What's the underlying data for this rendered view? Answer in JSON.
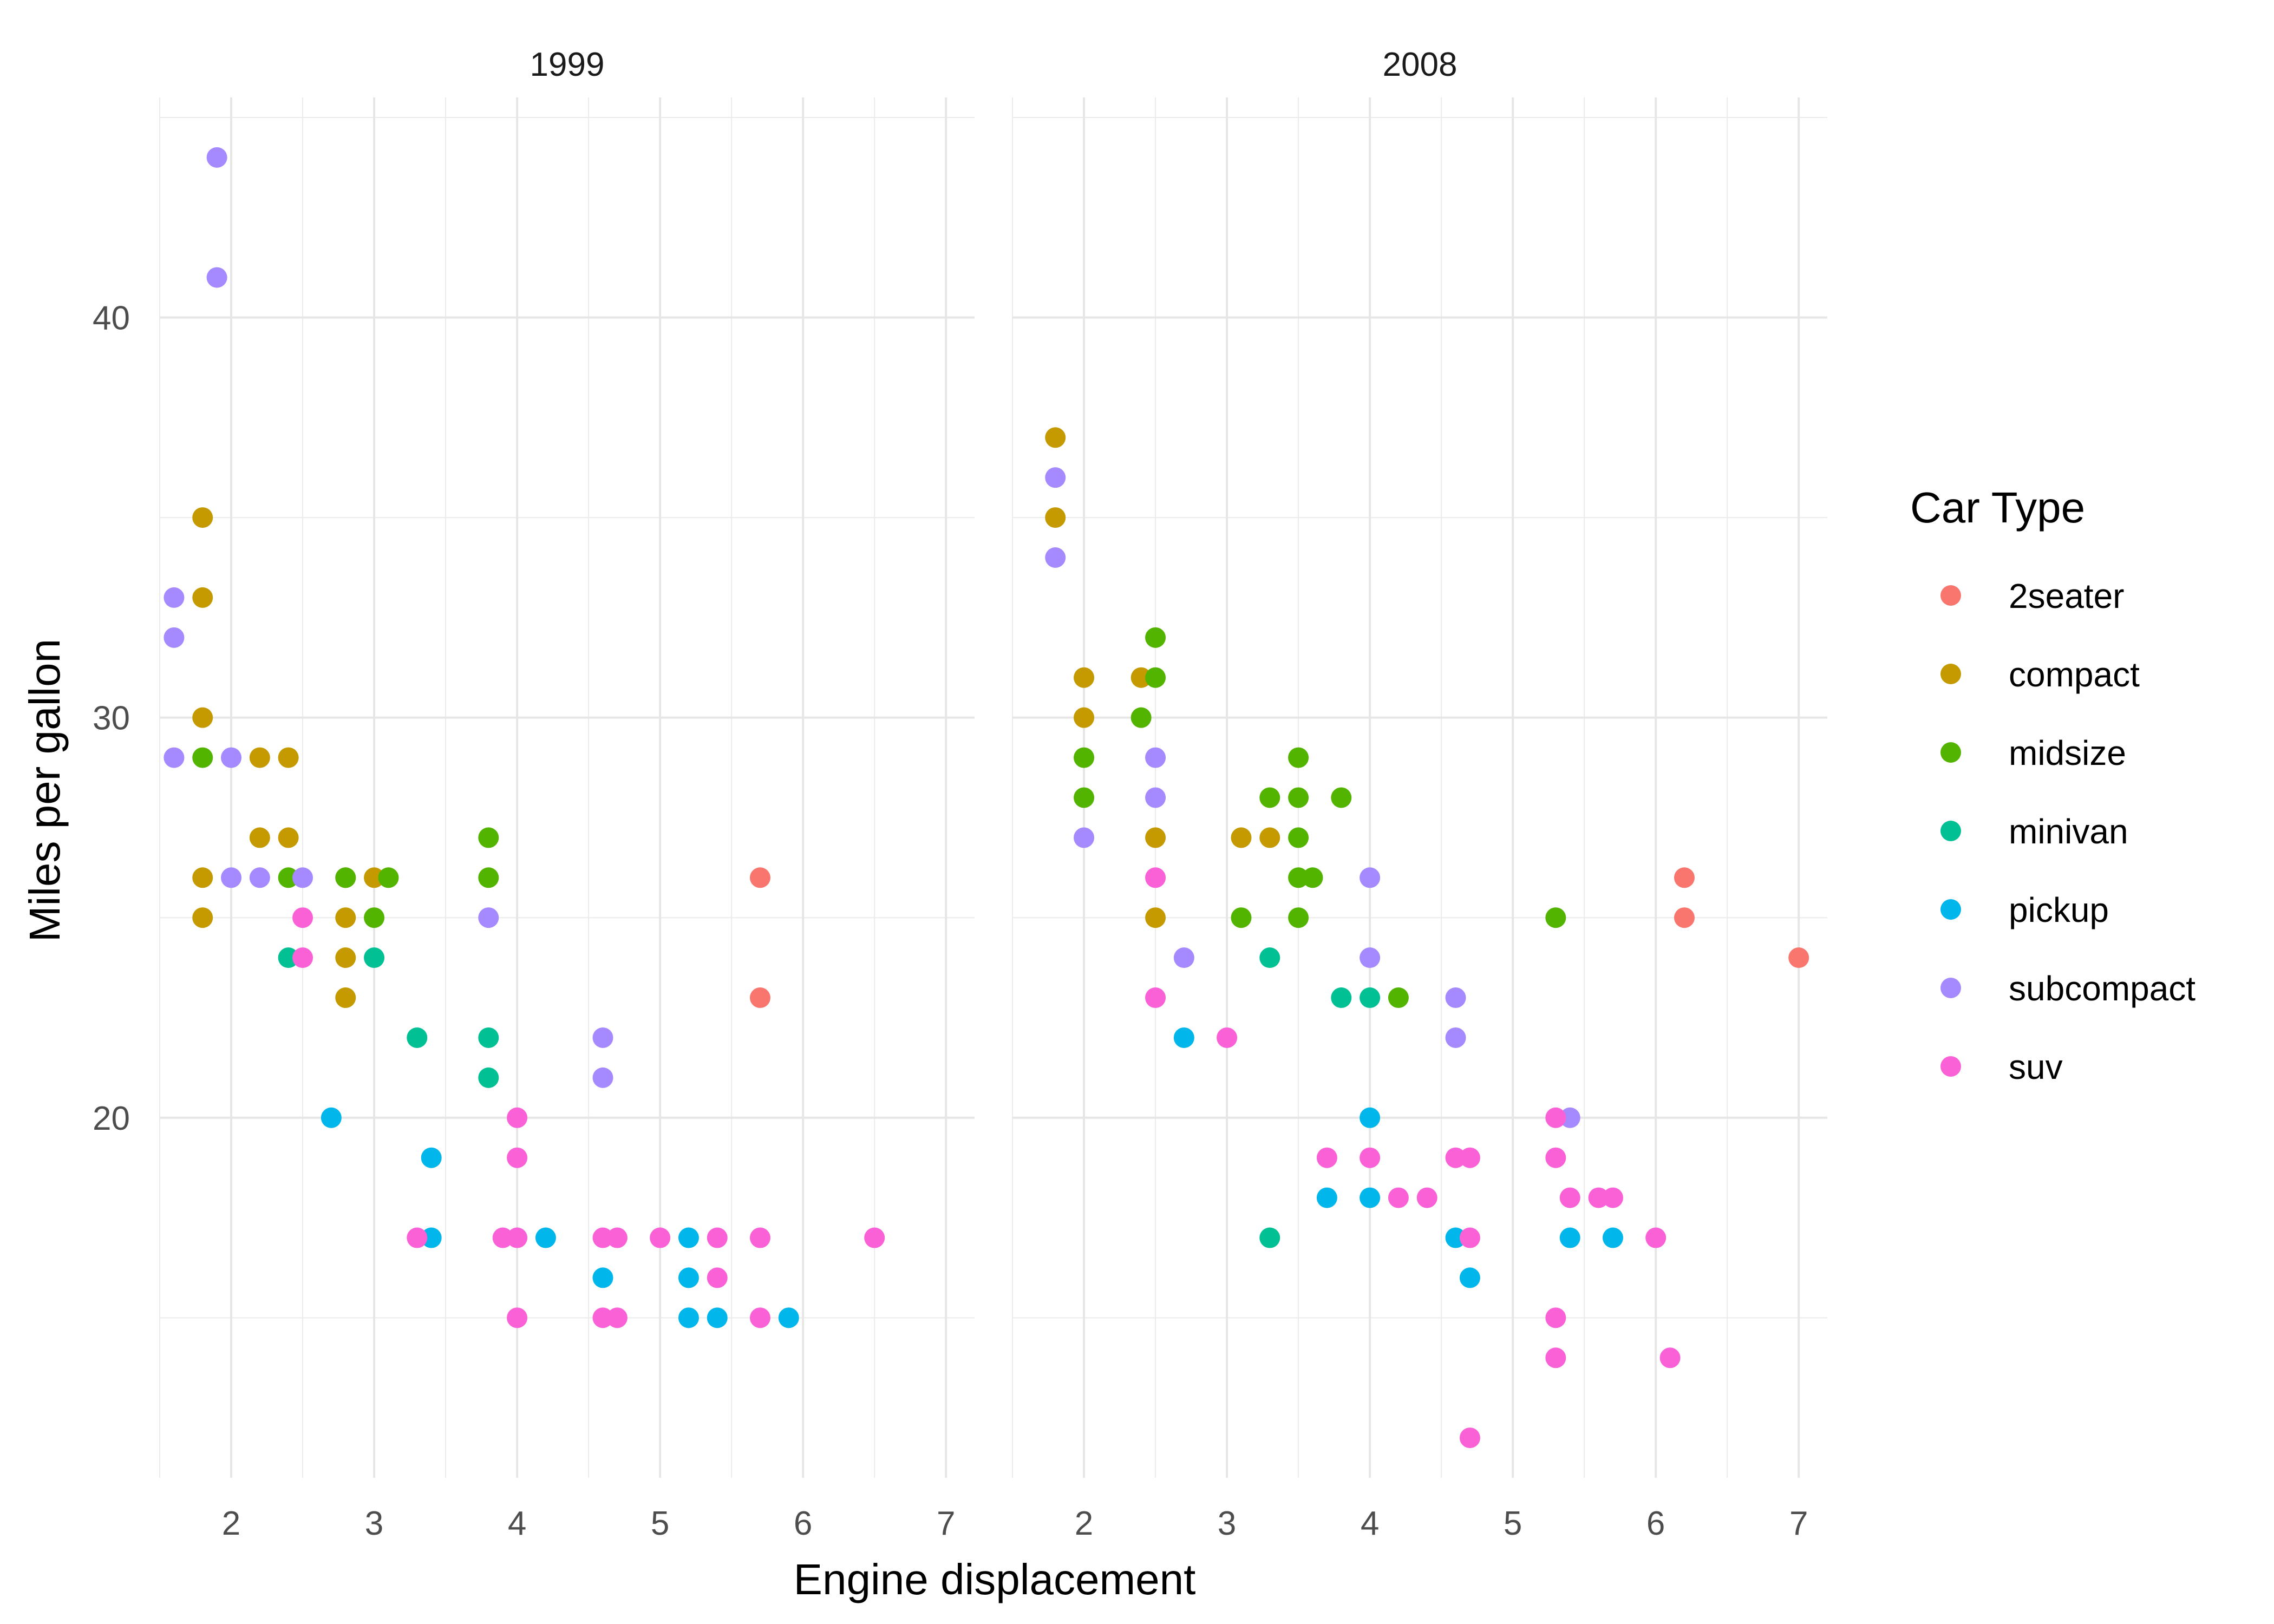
{
  "chart_data": {
    "type": "scatter",
    "xlabel": "Engine displacement",
    "ylabel": "Miles per gallon",
    "xlim": [
      1.5,
      7.2
    ],
    "ylim": [
      11,
      45.5
    ],
    "x_ticks": [
      2,
      3,
      4,
      5,
      6,
      7
    ],
    "y_ticks": [
      20,
      30,
      40
    ],
    "grid": true,
    "legend": {
      "title": "Car Type",
      "position": "right",
      "entries": [
        "2seater",
        "compact",
        "midsize",
        "minivan",
        "pickup",
        "subcompact",
        "suv"
      ]
    },
    "colors": {
      "2seater": "#F8766D",
      "compact": "#C49A00",
      "midsize": "#53B400",
      "minivan": "#00C094",
      "pickup": "#00B6EB",
      "subcompact": "#A58AFF",
      "suv": "#FB61D7"
    },
    "panels": [
      {
        "label": "1999",
        "series": [
          {
            "name": "2seater",
            "points": [
              [
                5.7,
                26
              ],
              [
                5.7,
                23
              ]
            ]
          },
          {
            "name": "compact",
            "points": [
              [
                1.8,
                35
              ],
              [
                1.8,
                33
              ],
              [
                1.8,
                30
              ],
              [
                1.8,
                26
              ],
              [
                1.8,
                25
              ],
              [
                2.2,
                29
              ],
              [
                2.2,
                27
              ],
              [
                2.4,
                29
              ],
              [
                2.4,
                27
              ],
              [
                2.8,
                26
              ],
              [
                2.8,
                25
              ],
              [
                2.8,
                24
              ],
              [
                2.8,
                23
              ],
              [
                3.0,
                26
              ]
            ]
          },
          {
            "name": "midsize",
            "points": [
              [
                1.8,
                29
              ],
              [
                2.4,
                26
              ],
              [
                2.8,
                26
              ],
              [
                3.0,
                25
              ],
              [
                3.1,
                26
              ],
              [
                3.8,
                27
              ],
              [
                3.8,
                26
              ]
            ]
          },
          {
            "name": "minivan",
            "points": [
              [
                2.4,
                24
              ],
              [
                3.0,
                24
              ],
              [
                3.3,
                22
              ],
              [
                3.8,
                22
              ],
              [
                3.8,
                21
              ]
            ]
          },
          {
            "name": "pickup",
            "points": [
              [
                2.7,
                20
              ],
              [
                3.4,
                19
              ],
              [
                3.4,
                17
              ],
              [
                4.2,
                17
              ],
              [
                4.6,
                16
              ],
              [
                5.2,
                17
              ],
              [
                5.2,
                16
              ],
              [
                5.2,
                15
              ],
              [
                5.4,
                15
              ],
              [
                5.9,
                15
              ]
            ]
          },
          {
            "name": "subcompact",
            "points": [
              [
                1.6,
                33
              ],
              [
                1.6,
                32
              ],
              [
                1.6,
                29
              ],
              [
                1.9,
                44
              ],
              [
                1.9,
                41
              ],
              [
                2.0,
                29
              ],
              [
                2.0,
                26
              ],
              [
                2.2,
                26
              ],
              [
                2.5,
                26
              ],
              [
                3.8,
                25
              ],
              [
                4.6,
                22
              ],
              [
                4.6,
                21
              ]
            ]
          },
          {
            "name": "suv",
            "points": [
              [
                2.5,
                25
              ],
              [
                2.5,
                24
              ],
              [
                3.3,
                17
              ],
              [
                3.9,
                17
              ],
              [
                4.0,
                20
              ],
              [
                4.0,
                19
              ],
              [
                4.0,
                17
              ],
              [
                4.0,
                15
              ],
              [
                4.6,
                17
              ],
              [
                4.6,
                15
              ],
              [
                4.7,
                17
              ],
              [
                4.7,
                15
              ],
              [
                5.0,
                17
              ],
              [
                5.4,
                17
              ],
              [
                5.4,
                16
              ],
              [
                5.7,
                17
              ],
              [
                5.7,
                15
              ],
              [
                6.5,
                17
              ]
            ]
          }
        ]
      },
      {
        "label": "2008",
        "series": [
          {
            "name": "2seater",
            "points": [
              [
                6.2,
                26
              ],
              [
                6.2,
                25
              ],
              [
                7.0,
                24
              ]
            ]
          },
          {
            "name": "compact",
            "points": [
              [
                1.8,
                37
              ],
              [
                1.8,
                35
              ],
              [
                2.0,
                31
              ],
              [
                2.0,
                30
              ],
              [
                2.4,
                31
              ],
              [
                2.5,
                27
              ],
              [
                2.5,
                25
              ],
              [
                3.1,
                27
              ],
              [
                3.3,
                27
              ]
            ]
          },
          {
            "name": "midsize",
            "points": [
              [
                2.0,
                29
              ],
              [
                2.0,
                28
              ],
              [
                2.4,
                30
              ],
              [
                2.5,
                32
              ],
              [
                2.5,
                31
              ],
              [
                3.1,
                25
              ],
              [
                3.3,
                28
              ],
              [
                3.5,
                29
              ],
              [
                3.5,
                28
              ],
              [
                3.5,
                27
              ],
              [
                3.5,
                26
              ],
              [
                3.5,
                25
              ],
              [
                3.6,
                26
              ],
              [
                3.8,
                28
              ],
              [
                4.2,
                23
              ],
              [
                5.3,
                25
              ]
            ]
          },
          {
            "name": "minivan",
            "points": [
              [
                3.3,
                24
              ],
              [
                3.3,
                17
              ],
              [
                3.8,
                23
              ],
              [
                4.0,
                23
              ]
            ]
          },
          {
            "name": "pickup",
            "points": [
              [
                2.7,
                22
              ],
              [
                3.7,
                18
              ],
              [
                4.0,
                20
              ],
              [
                4.0,
                18
              ],
              [
                4.6,
                17
              ],
              [
                4.7,
                16
              ],
              [
                5.4,
                17
              ],
              [
                5.7,
                17
              ]
            ]
          },
          {
            "name": "subcompact",
            "points": [
              [
                1.8,
                36
              ],
              [
                1.8,
                34
              ],
              [
                2.0,
                27
              ],
              [
                2.5,
                29
              ],
              [
                2.5,
                28
              ],
              [
                2.7,
                24
              ],
              [
                4.0,
                26
              ],
              [
                4.0,
                24
              ],
              [
                4.6,
                23
              ],
              [
                4.6,
                22
              ],
              [
                5.4,
                20
              ]
            ]
          },
          {
            "name": "suv",
            "points": [
              [
                2.5,
                26
              ],
              [
                2.5,
                23
              ],
              [
                3.0,
                22
              ],
              [
                3.7,
                19
              ],
              [
                4.0,
                19
              ],
              [
                4.2,
                18
              ],
              [
                4.4,
                18
              ],
              [
                4.6,
                19
              ],
              [
                4.7,
                19
              ],
              [
                4.7,
                17
              ],
              [
                4.7,
                12
              ],
              [
                5.3,
                20
              ],
              [
                5.3,
                19
              ],
              [
                5.3,
                15
              ],
              [
                5.3,
                14
              ],
              [
                5.4,
                18
              ],
              [
                5.6,
                18
              ],
              [
                5.7,
                18
              ],
              [
                6.0,
                17
              ],
              [
                6.1,
                14
              ]
            ]
          }
        ]
      }
    ]
  }
}
